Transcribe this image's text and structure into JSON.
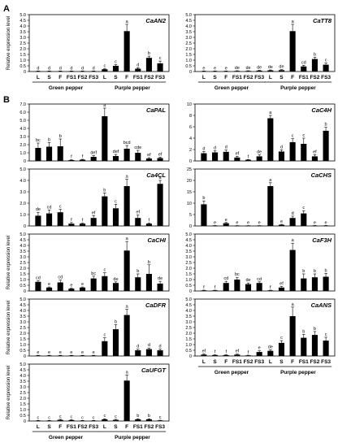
{
  "figure": {
    "panel_labels": [
      "A",
      "B"
    ],
    "ylabel": "Relative expression level",
    "group_labels": [
      "Green pepper",
      "Purple pepper"
    ]
  },
  "chart_data": [
    {
      "type": "bar",
      "title": "CaAN2",
      "categories": [
        "L",
        "S",
        "F",
        "FS1",
        "FS2",
        "FS3",
        "L",
        "S",
        "F",
        "FS1",
        "FS2",
        "FS3"
      ],
      "values": [
        0.03,
        0.03,
        0.03,
        0.03,
        0.03,
        0.03,
        0.2,
        0.5,
        3.55,
        0.25,
        1.2,
        0.72
      ],
      "errors": [
        0.02,
        0.02,
        0.02,
        0.02,
        0.02,
        0.02,
        0.05,
        0.1,
        0.6,
        0.08,
        0.15,
        0.2
      ],
      "letters": [
        "d",
        "d",
        "d",
        "d",
        "d",
        "d",
        "c",
        "c",
        "a",
        "d",
        "b",
        "c"
      ],
      "ylim": [
        0,
        5.0
      ],
      "yticks": [
        "0",
        "0.5",
        "1.0",
        "1.5",
        "2.0",
        "2.5",
        "3.0",
        "3.5",
        "4.0",
        "4.5",
        "5.0"
      ],
      "ylabel_show": true
    },
    {
      "type": "bar",
      "title": "CaTT8",
      "categories": [
        "L",
        "S",
        "F",
        "FS1",
        "FS2",
        "FS3",
        "L",
        "S",
        "F",
        "FS1",
        "FS2",
        "FS3"
      ],
      "values": [
        0.03,
        0.03,
        0.03,
        0.05,
        0.05,
        0.08,
        0.1,
        0.12,
        3.55,
        0.45,
        1.1,
        0.6
      ],
      "errors": [
        0.02,
        0.02,
        0.02,
        0.02,
        0.02,
        0.03,
        0.04,
        0.05,
        0.6,
        0.1,
        0.15,
        0.15
      ],
      "letters": [
        "e",
        "e",
        "e",
        "de",
        "de",
        "de",
        "de",
        "de",
        "a",
        "cd",
        "b",
        "c"
      ],
      "ylim": [
        0,
        5.0
      ],
      "yticks": [
        "0",
        "0.5",
        "1.0",
        "1.5",
        "2.0",
        "2.5",
        "3.0",
        "3.5",
        "4.0",
        "4.5",
        "5.0"
      ],
      "ylabel_show": false
    },
    {
      "type": "bar",
      "title": "CaPAL",
      "categories": [
        "L",
        "S",
        "F",
        "FS1",
        "FS2",
        "FS3",
        "L",
        "S",
        "F",
        "FS1",
        "FS2",
        "FS3"
      ],
      "values": [
        1.6,
        1.75,
        1.8,
        0.1,
        0.15,
        0.5,
        5.5,
        0.6,
        1.5,
        1.0,
        0.3,
        0.35
      ],
      "errors": [
        0.6,
        0.5,
        0.9,
        0.05,
        0.05,
        0.15,
        1.0,
        0.2,
        0.4,
        0.3,
        0.1,
        0.1
      ],
      "letters": [
        "bc",
        "b",
        "b",
        "f",
        "f",
        "def",
        "a",
        "def",
        "bcd",
        "cde",
        "ef",
        "ef"
      ],
      "ylim": [
        0,
        7.0
      ],
      "yticks": [
        "0",
        "1.0",
        "2.0",
        "3.0",
        "4.0",
        "5.0",
        "6.0",
        "7.0"
      ],
      "ylabel_show": false
    },
    {
      "type": "bar",
      "title": "CaC4H",
      "categories": [
        "L",
        "S",
        "F",
        "FS1",
        "FS2",
        "FS3",
        "L",
        "S",
        "F",
        "FS1",
        "FS2",
        "FS3"
      ],
      "values": [
        1.35,
        1.5,
        1.6,
        0.6,
        0.2,
        0.8,
        7.5,
        1.65,
        3.3,
        3.0,
        0.8,
        5.3
      ],
      "errors": [
        0.3,
        0.3,
        0.3,
        0.2,
        0.05,
        0.3,
        0.5,
        0.3,
        0.6,
        1.0,
        0.3,
        0.6
      ],
      "letters": [
        "d",
        "d",
        "d",
        "ef",
        "f",
        "de",
        "a",
        "d",
        "c",
        "c",
        "ef",
        "b"
      ],
      "ylim": [
        0,
        10
      ],
      "yticks": [
        "0",
        "2",
        "4",
        "6",
        "8",
        "10"
      ],
      "ylabel_show": false
    },
    {
      "type": "bar",
      "title": "CaCHS",
      "categories": [
        "L",
        "S",
        "F",
        "FS1",
        "FS2",
        "FS3",
        "L",
        "S",
        "F",
        "FS1",
        "FS2",
        "FS3"
      ],
      "values": [
        9.5,
        0.15,
        1.2,
        0.1,
        0.1,
        0.1,
        17.5,
        0.5,
        3.5,
        5.5,
        0.15,
        0.15
      ],
      "errors": [
        1.5,
        0.05,
        0.3,
        0.05,
        0.05,
        0.05,
        1.5,
        0.2,
        0.8,
        1.2,
        0.05,
        0.05
      ],
      "letters": [
        "b",
        "e",
        "e",
        "e",
        "e",
        "e",
        "a",
        "e",
        "d",
        "c",
        "e",
        "e"
      ],
      "ylim": [
        0,
        25
      ],
      "yticks": [
        "0",
        "5",
        "10",
        "15",
        "20",
        "25"
      ],
      "ylabel_show": false
    },
    {
      "type": "bar",
      "title": "Ca4CL",
      "categories": [
        "L",
        "S",
        "F",
        "FS1",
        "FS2",
        "FS3",
        "L",
        "S",
        "F",
        "FS1",
        "FS2",
        "FS3"
      ],
      "values": [
        0.9,
        1.1,
        1.2,
        0.2,
        0.2,
        0.7,
        2.6,
        1.55,
        3.5,
        0.7,
        0.2,
        3.7
      ],
      "errors": [
        0.3,
        0.3,
        0.25,
        0.1,
        0.05,
        0.2,
        0.3,
        0.35,
        0.6,
        0.25,
        0.05,
        0.3
      ],
      "letters": [
        "de",
        "cd",
        "c",
        "f",
        "f",
        "ef",
        "b",
        "c",
        "a",
        "ef",
        "f",
        "a"
      ],
      "ylim": [
        0,
        5.0
      ],
      "yticks": [
        "0",
        "1.0",
        "2.0",
        "3.0",
        "4.0",
        "5.0"
      ],
      "ylabel_show": false
    },
    {
      "type": "bar",
      "title": "CaCHI",
      "categories": [
        "L",
        "S",
        "F",
        "FS1",
        "FS2",
        "FS3",
        "L",
        "S",
        "F",
        "FS1",
        "FS2",
        "FS3"
      ],
      "values": [
        0.8,
        0.3,
        0.75,
        0.2,
        0.3,
        1.1,
        1.3,
        0.7,
        3.55,
        1.2,
        1.5,
        0.65
      ],
      "errors": [
        0.1,
        0.05,
        0.2,
        0.05,
        0.05,
        0.2,
        0.3,
        0.1,
        0.8,
        0.3,
        0.8,
        0.2
      ],
      "letters": [
        "cd",
        "e",
        "cd",
        "e",
        "e",
        "bc",
        "c",
        "de",
        "a",
        "b",
        "b",
        "de"
      ],
      "ylim": [
        0,
        5.0
      ],
      "yticks": [
        "0",
        "0.5",
        "1.0",
        "1.5",
        "2.0",
        "2.5",
        "3.0",
        "3.5",
        "4.0",
        "4.5",
        "5.0"
      ],
      "ylabel_show": true
    },
    {
      "type": "bar",
      "title": "CaF3H",
      "categories": [
        "L",
        "S",
        "F",
        "FS1",
        "FS2",
        "FS3",
        "L",
        "S",
        "F",
        "FS1",
        "FS2",
        "FS3"
      ],
      "values": [
        0.05,
        0.05,
        0.7,
        1.0,
        0.6,
        0.7,
        0.05,
        0.3,
        3.6,
        1.1,
        1.2,
        1.25
      ],
      "errors": [
        0.02,
        0.02,
        0.15,
        0.2,
        0.1,
        0.1,
        0.02,
        0.1,
        0.6,
        0.4,
        0.3,
        0.3
      ],
      "letters": [
        "f",
        "f",
        "cd",
        "bc",
        "de",
        "cd",
        "f",
        "ef",
        "a",
        "b",
        "b",
        "b"
      ],
      "ylim": [
        0,
        5.0
      ],
      "yticks": [
        "0",
        "0.5",
        "1.0",
        "1.5",
        "2.0",
        "2.5",
        "3.0",
        "3.5",
        "4.0",
        "4.5",
        "5.0"
      ],
      "ylabel_show": false
    },
    {
      "type": "bar",
      "title": "CaDFR",
      "categories": [
        "L",
        "S",
        "F",
        "FS1",
        "FS2",
        "FS3",
        "L",
        "S",
        "F",
        "FS1",
        "FS2",
        "FS3"
      ],
      "values": [
        0.04,
        0.04,
        0.04,
        0.04,
        0.04,
        0.04,
        1.3,
        2.35,
        3.6,
        0.5,
        0.6,
        0.5
      ],
      "errors": [
        0.02,
        0.02,
        0.02,
        0.02,
        0.02,
        0.02,
        0.3,
        0.4,
        0.5,
        0.1,
        0.1,
        0.1
      ],
      "letters": [
        "e",
        "e",
        "e",
        "e",
        "e",
        "e",
        "c",
        "b",
        "a",
        "d",
        "d",
        "d"
      ],
      "ylim": [
        0,
        5.0
      ],
      "yticks": [
        "0",
        "0.5",
        "1.0",
        "1.5",
        "2.0",
        "2.5",
        "3.0",
        "3.5",
        "4.0",
        "4.5",
        "5.0"
      ],
      "ylabel_show": true
    },
    {
      "type": "bar",
      "title": "CaANS",
      "categories": [
        "L",
        "S",
        "F",
        "FS1",
        "FS2",
        "FS3",
        "L",
        "S",
        "F",
        "FS1",
        "FS2",
        "FS3"
      ],
      "values": [
        0.12,
        0.08,
        0.08,
        0.12,
        0.05,
        0.35,
        0.45,
        1.15,
        3.5,
        1.6,
        1.85,
        1.35
      ],
      "errors": [
        0.05,
        0.03,
        0.03,
        0.05,
        0.02,
        0.1,
        0.1,
        0.2,
        0.8,
        0.3,
        0.3,
        0.3
      ],
      "letters": [
        "ef",
        "f",
        "f",
        "ef",
        "f",
        "e",
        "de",
        "c",
        "a",
        "b",
        "b",
        "c"
      ],
      "ylim": [
        0,
        5.0
      ],
      "yticks": [
        "0",
        "0.5",
        "1.0",
        "1.5",
        "2.0",
        "2.5",
        "3.0",
        "3.5",
        "4.0",
        "4.5",
        "5.0"
      ],
      "ylabel_show": false
    },
    {
      "type": "bar",
      "title": "CaUFGT",
      "categories": [
        "L",
        "S",
        "F",
        "FS1",
        "FS2",
        "FS3",
        "L",
        "S",
        "F",
        "FS1",
        "FS2",
        "FS3"
      ],
      "values": [
        0.03,
        0.03,
        0.1,
        0.08,
        0.03,
        0.03,
        0.15,
        0.1,
        3.55,
        0.15,
        0.15,
        0.05
      ],
      "errors": [
        0.02,
        0.02,
        0.05,
        0.04,
        0.02,
        0.02,
        0.05,
        0.05,
        0.5,
        0.05,
        0.05,
        0.02
      ],
      "letters": [
        "c",
        "c",
        "c",
        "c",
        "c",
        "c",
        "c",
        "c",
        "a",
        "b",
        "b",
        "c"
      ],
      "ylim": [
        0,
        5.0
      ],
      "yticks": [
        "0",
        "0.5",
        "1.0",
        "1.5",
        "2.0",
        "2.5",
        "3.0",
        "3.5",
        "4.0",
        "4.5",
        "5.0"
      ],
      "ylabel_show": true
    }
  ]
}
